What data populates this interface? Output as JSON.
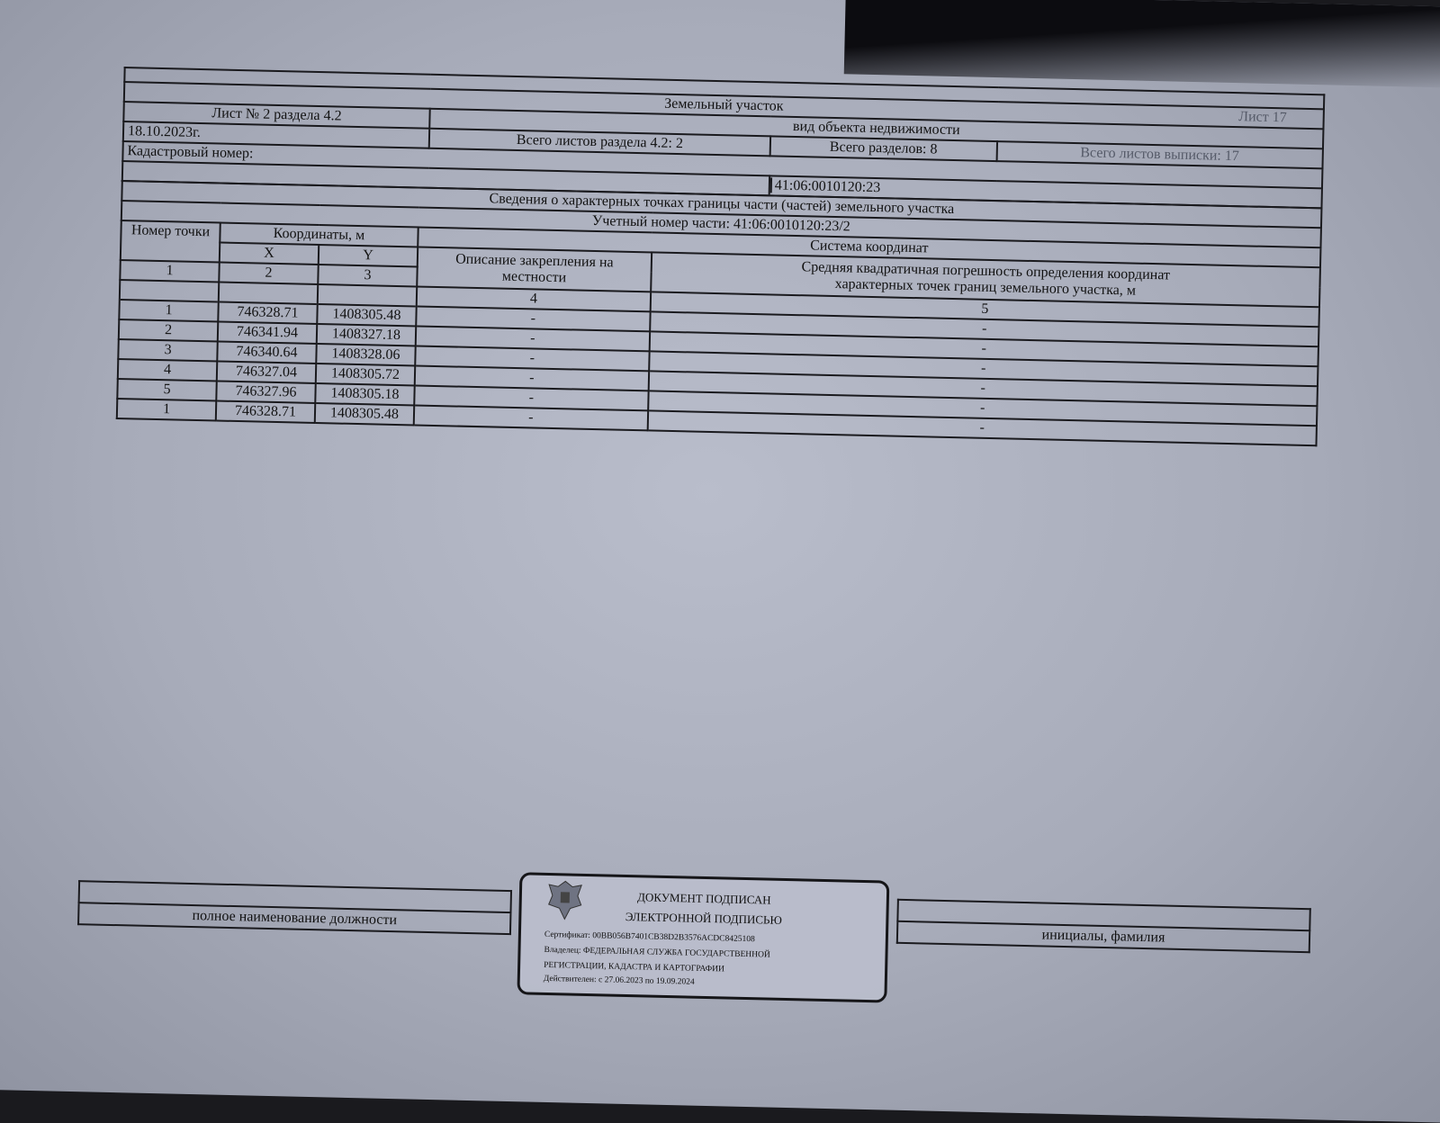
{
  "header": {
    "object_type": "Земельный участок",
    "sheet_label": "Лист 17",
    "object_kind_caption": "вид объекта недвижимости",
    "sheet_of_section": "Лист № 2 раздела 4.2",
    "total_sheets_section": "Всего листов раздела 4.2: 2",
    "total_sections": "Всего разделов: 8",
    "total_sheets_extract": "Всего листов выписки: 17",
    "date": "18.10.2023г.",
    "cadastral_label": "Кадастровый номер:",
    "cadastral_number": "41:06:0010120:23"
  },
  "table": {
    "title": "Сведения о характерных точках границы части (частей) земельного участка",
    "part_number": "Учетный номер части: 41:06:0010120:23/2",
    "col_point": "Номер точки",
    "col_coords": "Координаты, м",
    "col_x": "X",
    "col_y": "Y",
    "col_coord_system": "Система координат",
    "col_desc": "Описание закрепления на местности",
    "col_error": "Средняя квадратичная погрешность определения координат характерных точек границ земельного участка, м",
    "col_nums": [
      "1",
      "2",
      "3",
      "4",
      "5"
    ],
    "rows": [
      {
        "point": "1",
        "x": "746328.71",
        "y": "1408305.48",
        "desc": "-",
        "err": "-"
      },
      {
        "point": "2",
        "x": "746341.94",
        "y": "1408327.18",
        "desc": "-",
        "err": "-"
      },
      {
        "point": "3",
        "x": "746340.64",
        "y": "1408328.06",
        "desc": "-",
        "err": "-"
      },
      {
        "point": "4",
        "x": "746327.04",
        "y": "1408305.72",
        "desc": "-",
        "err": "-"
      },
      {
        "point": "5",
        "x": "746327.96",
        "y": "1408305.18",
        "desc": "-",
        "err": "-"
      },
      {
        "point": "1",
        "x": "746328.71",
        "y": "1408305.48",
        "desc": "-",
        "err": "-"
      }
    ]
  },
  "footer": {
    "position_caption": "полное наименование должности",
    "name_caption": "инициалы, фамилия"
  },
  "stamp": {
    "line1": "ДОКУМЕНТ ПОДПИСАН",
    "line2": "ЭЛЕКТРОННОЙ ПОДПИСЬЮ",
    "certificate": "Сертификат: 00BB056B7401CB38D2B3576ACDC8425108",
    "owner1": "Владелец: ФЕДЕРАЛЬНАЯ СЛУЖБА ГОСУДАРСТВЕННОЙ",
    "owner2": "РЕГИСТРАЦИИ, КАДАСТРА И КАРТОГРАФИИ",
    "valid": "Действителен: с 27.06.2023 по 19.09.2024"
  }
}
